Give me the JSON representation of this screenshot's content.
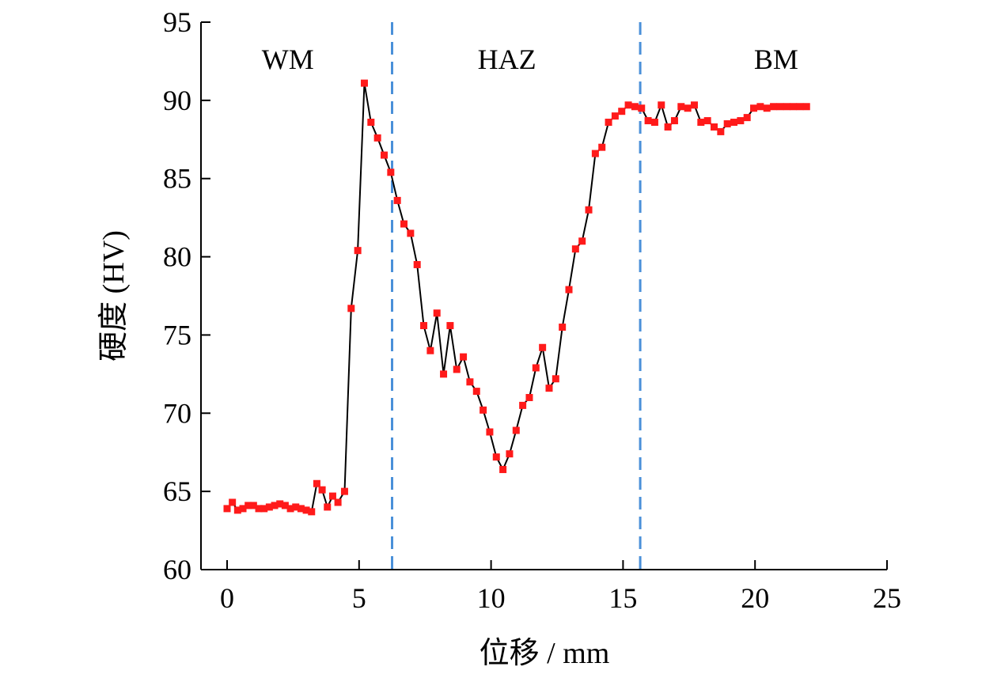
{
  "chart_data": {
    "type": "line",
    "xlabel": "位移 / mm",
    "ylabel": "硬度 (HV)",
    "xlim": [
      -2,
      25
    ],
    "ylim": [
      60,
      95
    ],
    "xticks": [
      0,
      5,
      10,
      15,
      20,
      25
    ],
    "yticks": [
      60,
      65,
      70,
      75,
      80,
      85,
      90,
      95
    ],
    "grid": false,
    "colors": {
      "line": "#000000",
      "marker": "#ff1a1a",
      "divider": "#4a90d9"
    },
    "regions": [
      {
        "label": "WM",
        "x": 2.3
      },
      {
        "label": "HAZ",
        "x": 10.6
      },
      {
        "label": "BM",
        "x": 20.8
      }
    ],
    "dividers": [
      6.25,
      15.65
    ],
    "series": [
      {
        "x": [
          0.0,
          0.2,
          0.4,
          0.6,
          0.8,
          1.0,
          1.2,
          1.4,
          1.6,
          1.8,
          2.0,
          2.2,
          2.4,
          2.6,
          2.8,
          3.0,
          3.2,
          3.4,
          3.6,
          3.8,
          4.0,
          4.2,
          4.45,
          4.7,
          4.95,
          5.2,
          5.45,
          5.7,
          5.95,
          6.2,
          6.45,
          6.7,
          6.95,
          7.2,
          7.45,
          7.7,
          7.95,
          8.2,
          8.45,
          8.7,
          8.95,
          9.2,
          9.45,
          9.7,
          9.95,
          10.2,
          10.45,
          10.7,
          10.95,
          11.2,
          11.45,
          11.7,
          11.95,
          12.2,
          12.45,
          12.7,
          12.95,
          13.2,
          13.45,
          13.7,
          13.95,
          14.2,
          14.45,
          14.7,
          14.95,
          15.2,
          15.45,
          15.7,
          15.95,
          16.2,
          16.45,
          16.7,
          16.95,
          17.2,
          17.45,
          17.7,
          17.95,
          18.2,
          18.45,
          18.7,
          18.95,
          19.2,
          19.45,
          19.7,
          19.95,
          20.2,
          20.45,
          20.7,
          20.95,
          21.2,
          21.45,
          21.7,
          21.95
        ],
        "values": [
          63.9,
          64.3,
          63.8,
          63.9,
          64.1,
          64.1,
          63.9,
          63.9,
          64.0,
          64.1,
          64.2,
          64.1,
          63.9,
          64.0,
          63.9,
          63.8,
          63.7,
          65.5,
          65.1,
          64.0,
          64.7,
          64.3,
          65.0,
          76.7,
          80.4,
          91.1,
          88.6,
          87.6,
          86.5,
          85.4,
          83.6,
          82.1,
          81.5,
          79.5,
          75.6,
          74.0,
          76.4,
          72.5,
          75.6,
          72.8,
          73.6,
          72.0,
          71.4,
          70.2,
          68.8,
          67.2,
          66.4,
          67.4,
          68.9,
          70.5,
          71.0,
          72.9,
          74.2,
          71.6,
          72.2,
          75.5,
          77.9,
          80.5,
          81.0,
          83.0,
          86.6,
          87.0,
          88.6,
          89.0,
          89.3,
          89.7,
          89.6,
          89.5,
          88.7,
          88.6,
          89.7,
          88.3,
          88.7,
          89.6,
          89.5,
          89.7,
          88.6,
          88.7,
          88.3,
          88.0,
          88.5,
          88.6,
          88.7,
          88.9,
          89.5,
          89.6,
          89.5,
          89.6,
          89.6,
          89.6,
          89.6,
          89.6,
          89.6
        ]
      }
    ]
  }
}
